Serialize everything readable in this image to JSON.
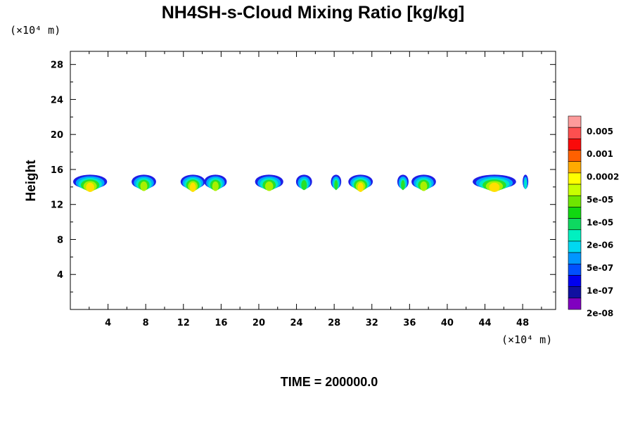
{
  "chart_data": {
    "type": "heatmap",
    "title": "NH4SH-s-Cloud Mixing Ratio [kg/kg]",
    "ylabel": "Height",
    "x_unit_label": "(×10⁴ m)",
    "y_unit_label": "(×10⁴ m)",
    "xlim": [
      0,
      51.5
    ],
    "ylim": [
      0,
      29.5
    ],
    "x_ticks": [
      "4",
      "8",
      "12",
      "16",
      "20",
      "24",
      "28",
      "32",
      "36",
      "40",
      "44",
      "48"
    ],
    "y_ticks": [
      "4",
      "8",
      "12",
      "16",
      "20",
      "24",
      "28"
    ],
    "time_label": "TIME = 200000.0",
    "colorbar": {
      "labels": [
        "0.005",
        "0.001",
        "0.0002",
        "5e-05",
        "1e-05",
        "2e-06",
        "5e-07",
        "1e-07",
        "2e-08"
      ],
      "colors": [
        "#fd9b9b",
        "#fd4f4f",
        "#fa0a0a",
        "#ff6000",
        "#ffaa00",
        "#ffff00",
        "#c8ff00",
        "#6ee600",
        "#11d811",
        "#0ed860",
        "#00f0c0",
        "#00d8f0",
        "#0096ff",
        "#0050ff",
        "#0000f0",
        "#1010a0",
        "#8000c0"
      ]
    },
    "clouds": [
      {
        "x": 2.1,
        "w": 3.6,
        "levels": [
          "#1e1ee6",
          "#00a8ff",
          "#00e8c8",
          "#28e028",
          "#a8f000",
          "#ffe000"
        ]
      },
      {
        "x": 7.8,
        "w": 2.6,
        "levels": [
          "#1e1ee6",
          "#00a8ff",
          "#00e8c8",
          "#28e028",
          "#a8f000"
        ]
      },
      {
        "x": 13.0,
        "w": 2.6,
        "levels": [
          "#1e1ee6",
          "#00a8ff",
          "#00e8c8",
          "#28e028",
          "#a8f000",
          "#ffe000"
        ]
      },
      {
        "x": 15.4,
        "w": 2.4,
        "levels": [
          "#1e1ee6",
          "#00a8ff",
          "#00e8c8",
          "#28e028",
          "#a8f000"
        ]
      },
      {
        "x": 21.1,
        "w": 3.0,
        "levels": [
          "#1e1ee6",
          "#00a8ff",
          "#00e8c8",
          "#28e028",
          "#a8f000"
        ]
      },
      {
        "x": 24.8,
        "w": 1.7,
        "levels": [
          "#1e1ee6",
          "#00a8ff",
          "#00e8c8",
          "#28e028"
        ]
      },
      {
        "x": 28.2,
        "w": 1.1,
        "levels": [
          "#1e1ee6",
          "#00a8ff",
          "#00e8c8",
          "#28e028"
        ]
      },
      {
        "x": 30.8,
        "w": 2.6,
        "levels": [
          "#1e1ee6",
          "#00a8ff",
          "#00e8c8",
          "#28e028",
          "#a8f000",
          "#ffe000"
        ]
      },
      {
        "x": 35.3,
        "w": 1.2,
        "levels": [
          "#1e1ee6",
          "#00a8ff",
          "#00e8c8",
          "#28e028"
        ]
      },
      {
        "x": 37.5,
        "w": 2.6,
        "levels": [
          "#1e1ee6",
          "#00a8ff",
          "#00e8c8",
          "#28e028",
          "#a8f000"
        ]
      },
      {
        "x": 45.0,
        "w": 4.6,
        "levels": [
          "#1e1ee6",
          "#00a8ff",
          "#00e8c8",
          "#28e028",
          "#a8f000",
          "#ffe000"
        ]
      },
      {
        "x": 48.3,
        "w": 0.6,
        "levels": [
          "#1e1ee6",
          "#00a8ff",
          "#00e8c8"
        ]
      }
    ]
  }
}
